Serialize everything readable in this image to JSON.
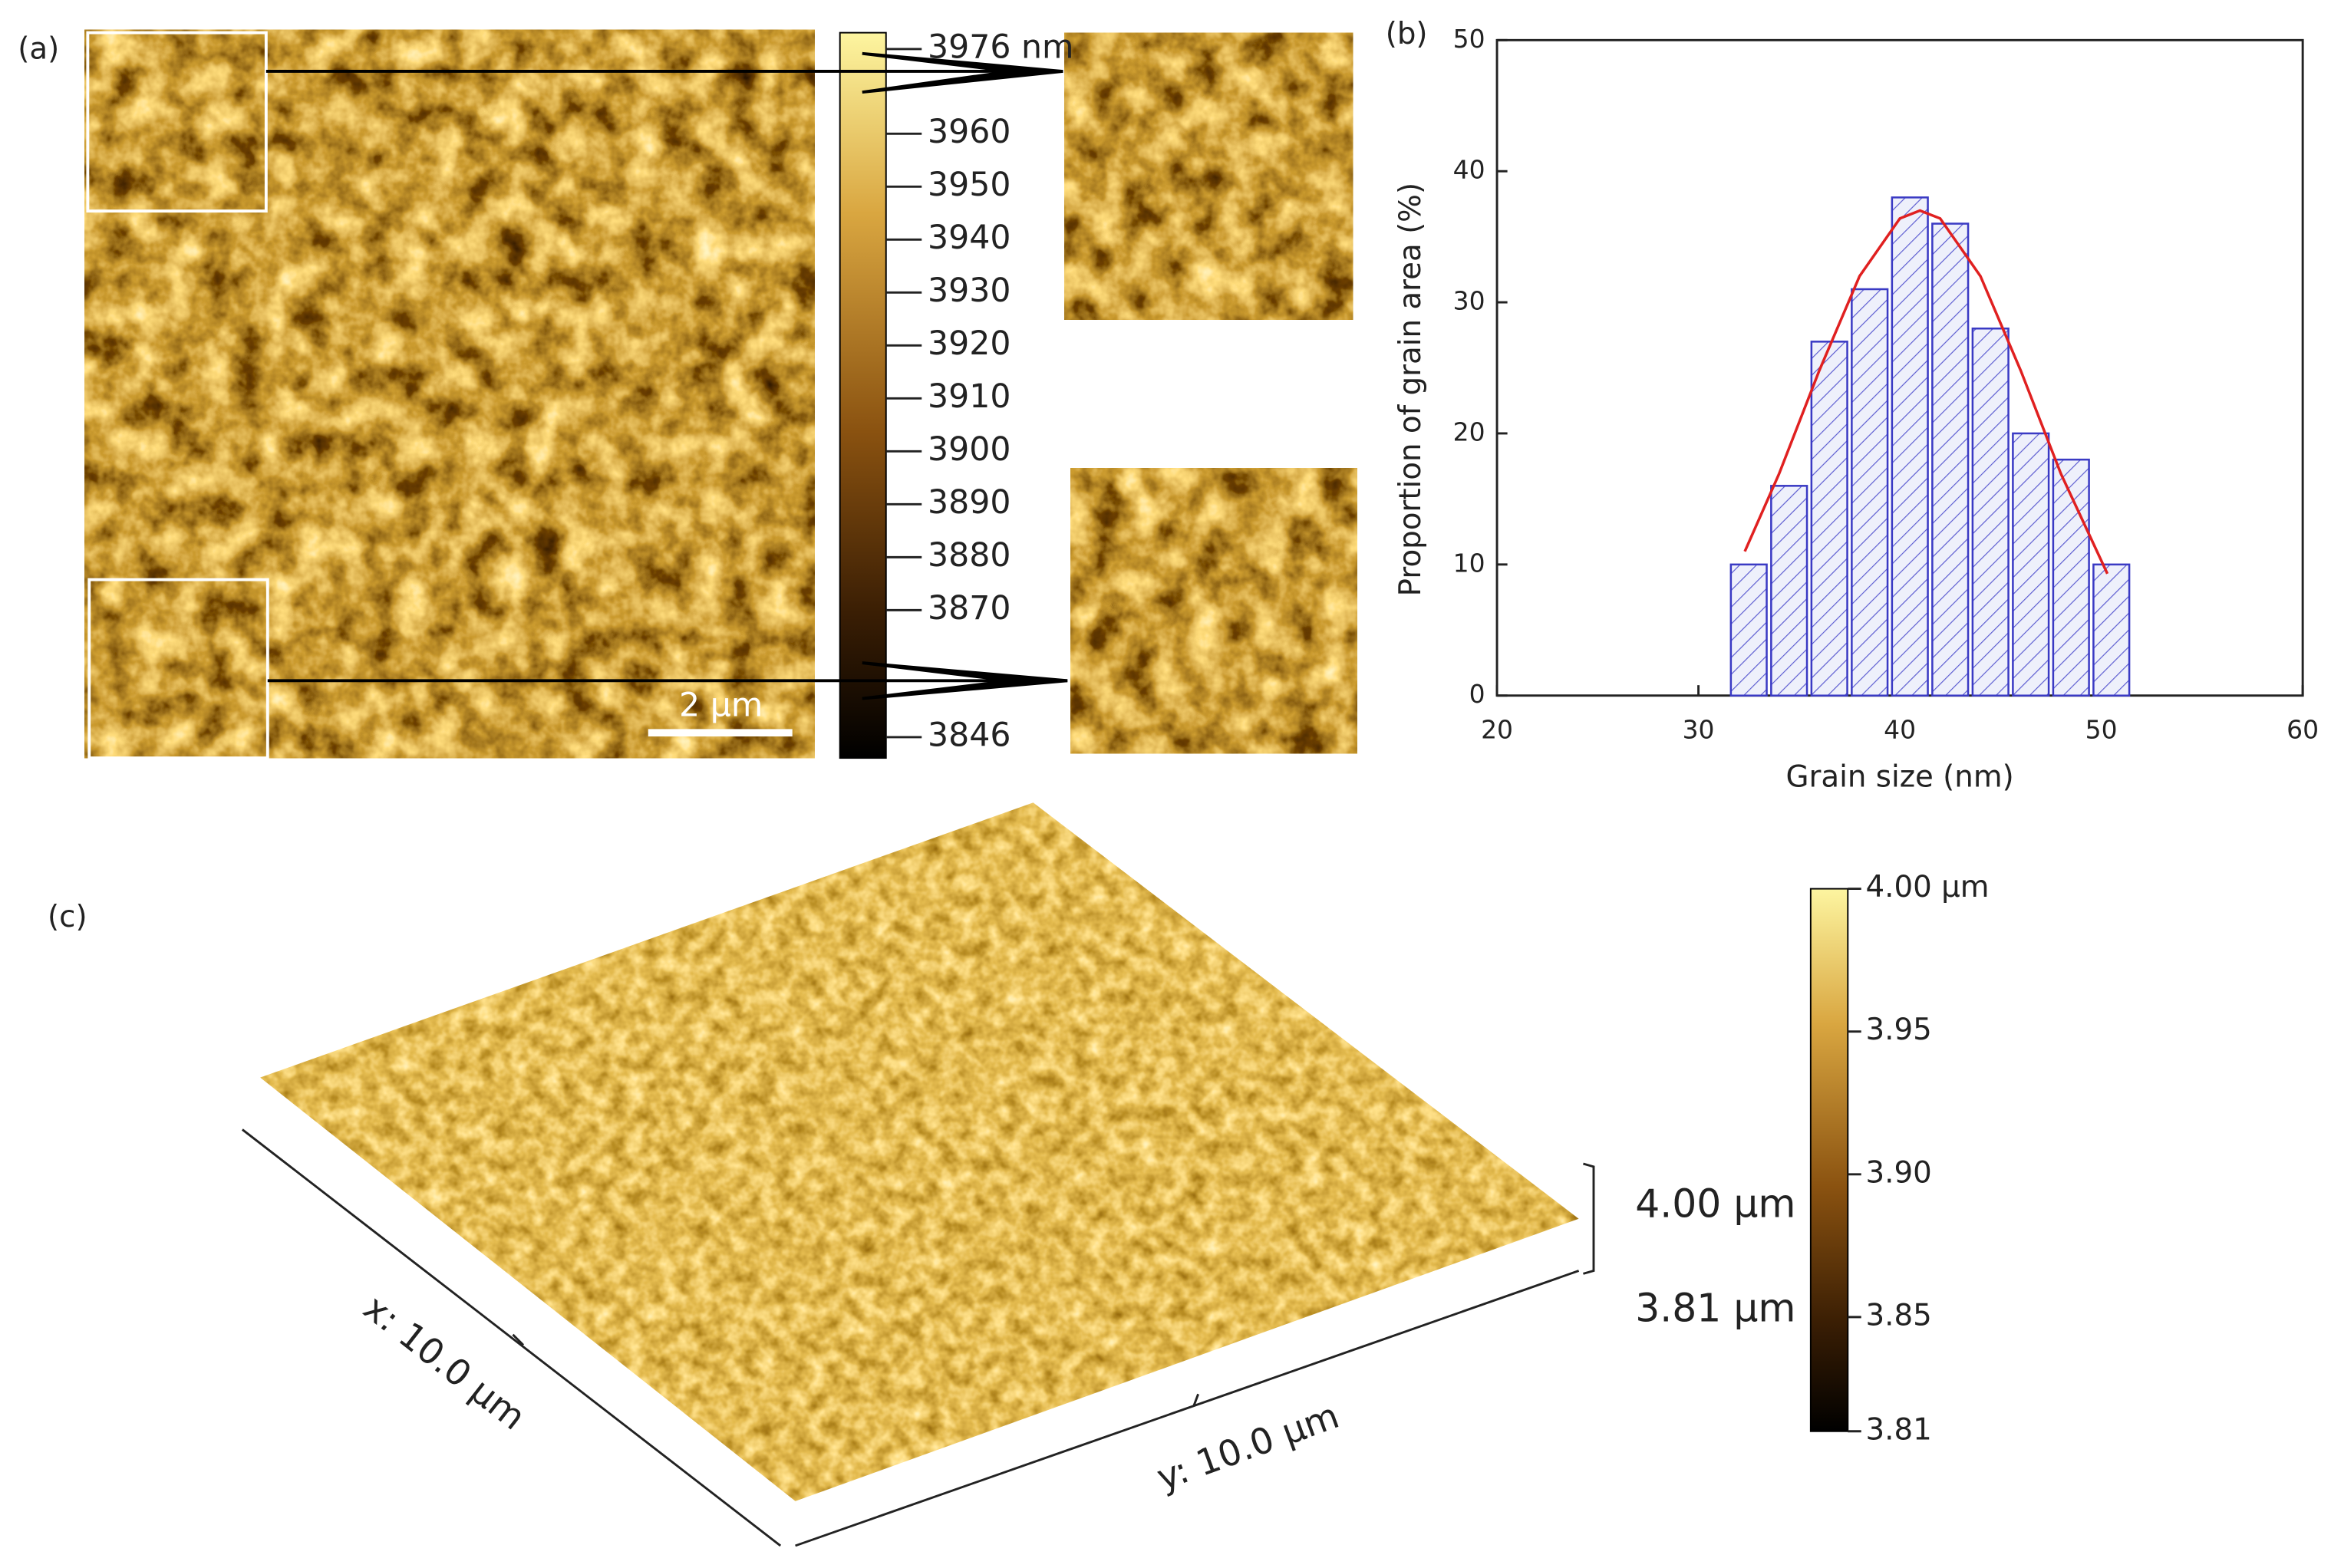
{
  "panel_a": {
    "label": "(a)",
    "scale_bar": "2 μm",
    "colorbar": {
      "lim": [
        3846,
        3976
      ],
      "ticks": [
        {
          "value": 3976,
          "label": "3976 nm"
        },
        3960,
        3950,
        3940,
        3930,
        3920,
        3910,
        3900,
        3890,
        3880,
        3870,
        3846
      ]
    }
  },
  "chart_data": {
    "type": "histogram",
    "panel_label": "(b)",
    "x_label": "Grain size (nm)",
    "y_label": "Proportion of grain area (%)",
    "bins": [
      31.5,
      33.5,
      35.5,
      37.5,
      39.5,
      41.5,
      43.5,
      45.5,
      47.5,
      49.5,
      51.5
    ],
    "counts": [
      10,
      16,
      27,
      31,
      38,
      36,
      28,
      20,
      18,
      10
    ],
    "color": "#3a3ac4",
    "fit": {
      "color": "#e02020",
      "x": [
        32.3,
        34,
        36,
        38,
        40,
        41,
        42,
        44,
        46,
        48,
        50.3
      ],
      "y": [
        11.0,
        16.9,
        24.8,
        32.0,
        36.4,
        37,
        36.4,
        32.0,
        24.8,
        16.9,
        9.3
      ]
    },
    "xlim": [
      20,
      60
    ],
    "xticks": [
      20,
      30,
      40,
      50,
      60
    ],
    "ylim": [
      0,
      50
    ],
    "yticks": [
      0,
      10,
      20,
      30,
      40,
      50
    ]
  },
  "panel_c": {
    "label": "(c)",
    "x_axis": "x: 10.0 μm",
    "y_axis": "y: 10.0 μm",
    "z_top": "4.00 μm",
    "z_bottom": "3.81 μm",
    "colorbar": {
      "lim": [
        3.81,
        4.0
      ],
      "ticks": [
        {
          "value": 4.0,
          "label": "4.00 μm"
        },
        3.95,
        {
          "value": 3.9,
          "label": "3.90"
        },
        3.85,
        3.81
      ]
    }
  }
}
